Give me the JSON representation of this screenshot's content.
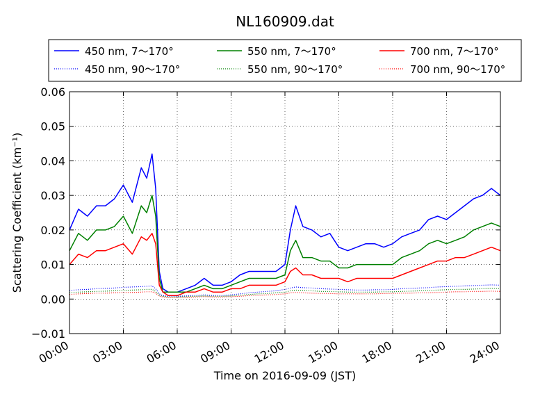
{
  "chart_data": {
    "type": "line",
    "title": "NL160909.dat",
    "xlabel": "Time on 2016-09-09 (JST)",
    "ylabel": "Scattering Coefficient (km⁻¹)",
    "x_unit": "hours",
    "xlim": [
      0,
      24
    ],
    "ylim": [
      -0.01,
      0.06
    ],
    "yticks": [
      "−0.01",
      "0.00",
      "0.01",
      "0.02",
      "0.03",
      "0.04",
      "0.05",
      "0.06"
    ],
    "xticks": [
      "00:00",
      "03:00",
      "06:00",
      "09:00",
      "12:00",
      "15:00",
      "18:00",
      "21:00",
      "24:00"
    ],
    "grid": true,
    "legend_placement": "top, 2 rows × 3 columns",
    "x": [
      0,
      0.5,
      1,
      1.5,
      2,
      2.5,
      3,
      3.5,
      4,
      4.3,
      4.6,
      4.8,
      5,
      5.2,
      5.5,
      6,
      6.5,
      7,
      7.5,
      8,
      8.5,
      9,
      9.5,
      10,
      10.5,
      11,
      11.5,
      12,
      12.3,
      12.6,
      13,
      13.5,
      14,
      14.5,
      15,
      15.5,
      16,
      16.5,
      17,
      17.5,
      18,
      18.5,
      19,
      19.5,
      20,
      20.5,
      21,
      21.5,
      22,
      22.5,
      23,
      23.5,
      24
    ],
    "series": [
      {
        "name": "450 nm, 7～170°",
        "color": "#0000ff",
        "style": "solid",
        "values": [
          0.02,
          0.026,
          0.024,
          0.027,
          0.027,
          0.029,
          0.033,
          0.028,
          0.038,
          0.035,
          0.042,
          0.032,
          0.008,
          0.003,
          0.002,
          0.002,
          0.003,
          0.004,
          0.006,
          0.004,
          0.004,
          0.005,
          0.007,
          0.008,
          0.008,
          0.008,
          0.008,
          0.01,
          0.02,
          0.027,
          0.021,
          0.02,
          0.018,
          0.019,
          0.015,
          0.014,
          0.015,
          0.016,
          0.016,
          0.015,
          0.016,
          0.018,
          0.019,
          0.02,
          0.023,
          0.024,
          0.023,
          0.025,
          0.027,
          0.029,
          0.03,
          0.032,
          0.03
        ]
      },
      {
        "name": "450 nm, 90～170°",
        "color": "#0000ff",
        "style": "dotted",
        "values": [
          0.0025,
          0.0027,
          0.0028,
          0.003,
          0.0031,
          0.0032,
          0.0034,
          0.0035,
          0.0036,
          0.0037,
          0.0038,
          0.003,
          0.0015,
          0.001,
          0.0008,
          0.0008,
          0.0009,
          0.001,
          0.0012,
          0.001,
          0.001,
          0.0012,
          0.0015,
          0.0018,
          0.002,
          0.0022,
          0.0024,
          0.0028,
          0.0032,
          0.0035,
          0.0033,
          0.0032,
          0.003,
          0.0029,
          0.0028,
          0.0027,
          0.0026,
          0.0026,
          0.0027,
          0.0027,
          0.0028,
          0.003,
          0.0031,
          0.0032,
          0.0033,
          0.0035,
          0.0036,
          0.0037,
          0.0038,
          0.0039,
          0.004,
          0.0041,
          0.004
        ]
      },
      {
        "name": "550 nm, 7～170°",
        "color": "#008000",
        "style": "solid",
        "values": [
          0.014,
          0.019,
          0.017,
          0.02,
          0.02,
          0.021,
          0.024,
          0.019,
          0.027,
          0.025,
          0.03,
          0.024,
          0.006,
          0.002,
          0.002,
          0.002,
          0.002,
          0.003,
          0.004,
          0.003,
          0.003,
          0.004,
          0.005,
          0.006,
          0.006,
          0.006,
          0.006,
          0.007,
          0.014,
          0.017,
          0.012,
          0.012,
          0.011,
          0.011,
          0.009,
          0.009,
          0.01,
          0.01,
          0.01,
          0.01,
          0.01,
          0.012,
          0.013,
          0.014,
          0.016,
          0.017,
          0.016,
          0.017,
          0.018,
          0.02,
          0.021,
          0.022,
          0.021
        ]
      },
      {
        "name": "550 nm, 90～170°",
        "color": "#008000",
        "style": "dotted",
        "values": [
          0.0018,
          0.002,
          0.0021,
          0.0022,
          0.0023,
          0.0024,
          0.0025,
          0.0026,
          0.0027,
          0.0028,
          0.0028,
          0.0022,
          0.0011,
          0.0008,
          0.0006,
          0.0006,
          0.0007,
          0.0008,
          0.0009,
          0.0008,
          0.0008,
          0.0009,
          0.0011,
          0.0013,
          0.0015,
          0.0016,
          0.0018,
          0.002,
          0.0024,
          0.0026,
          0.0025,
          0.0024,
          0.0022,
          0.0022,
          0.0021,
          0.002,
          0.002,
          0.002,
          0.002,
          0.0021,
          0.0021,
          0.0022,
          0.0023,
          0.0024,
          0.0025,
          0.0026,
          0.0027,
          0.0028,
          0.0028,
          0.0029,
          0.003,
          0.0031,
          0.003
        ]
      },
      {
        "name": "700 nm, 7～170°",
        "color": "#ff0000",
        "style": "solid",
        "values": [
          0.01,
          0.013,
          0.012,
          0.014,
          0.014,
          0.015,
          0.016,
          0.013,
          0.018,
          0.017,
          0.019,
          0.016,
          0.004,
          0.002,
          0.001,
          0.001,
          0.002,
          0.002,
          0.003,
          0.002,
          0.002,
          0.003,
          0.003,
          0.004,
          0.004,
          0.004,
          0.004,
          0.005,
          0.008,
          0.009,
          0.007,
          0.007,
          0.006,
          0.006,
          0.006,
          0.005,
          0.006,
          0.006,
          0.006,
          0.006,
          0.006,
          0.007,
          0.008,
          0.009,
          0.01,
          0.011,
          0.011,
          0.012,
          0.012,
          0.013,
          0.014,
          0.015,
          0.014
        ]
      },
      {
        "name": "700 nm, 90～170°",
        "color": "#ff0000",
        "style": "dotted",
        "values": [
          0.0013,
          0.0015,
          0.0016,
          0.0017,
          0.0017,
          0.0018,
          0.0019,
          0.0019,
          0.002,
          0.0021,
          0.0021,
          0.0017,
          0.0008,
          0.0006,
          0.0005,
          0.0005,
          0.0005,
          0.0006,
          0.0007,
          0.0006,
          0.0006,
          0.0007,
          0.0008,
          0.001,
          0.0011,
          0.0012,
          0.0013,
          0.0015,
          0.0018,
          0.0019,
          0.0018,
          0.0017,
          0.0016,
          0.0016,
          0.0015,
          0.0015,
          0.0015,
          0.0015,
          0.0015,
          0.0016,
          0.0016,
          0.0017,
          0.0017,
          0.0018,
          0.0018,
          0.0019,
          0.002,
          0.0021,
          0.0021,
          0.0022,
          0.0022,
          0.0023,
          0.0022
        ]
      }
    ]
  }
}
